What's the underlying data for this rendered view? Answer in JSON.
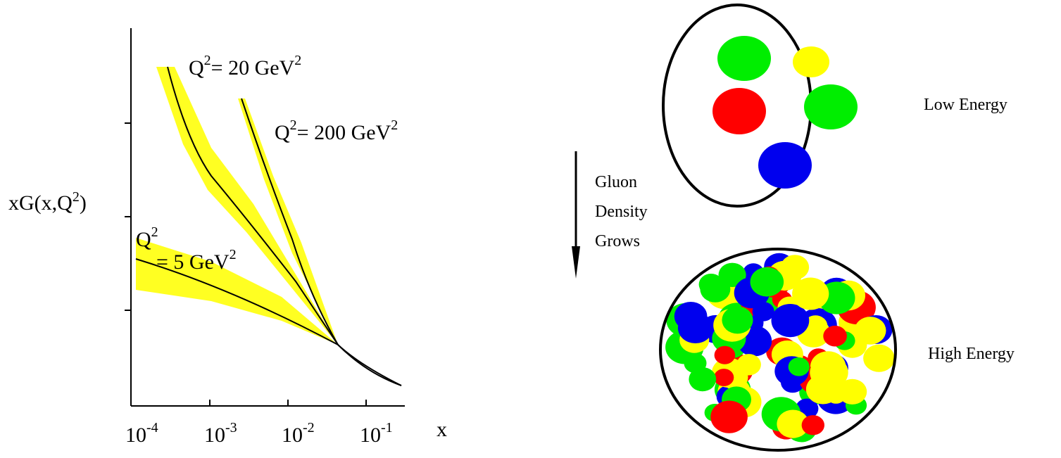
{
  "plot": {
    "y_label": {
      "text": "xG(x,Q",
      "sup": "2",
      "end": ")"
    },
    "x_label": "x",
    "x_ticks": [
      {
        "base": "10",
        "exp": "-4"
      },
      {
        "base": "10",
        "exp": "-3"
      },
      {
        "base": "10",
        "exp": "-2"
      },
      {
        "base": "10",
        "exp": "-1"
      }
    ],
    "curves": [
      {
        "q": "Q",
        "q_exp": "2",
        "text": "= 20 GeV",
        "exp": "2"
      },
      {
        "q": "Q",
        "q_exp": "2",
        "text": "= 200 GeV",
        "exp": "2"
      },
      {
        "q": "Q",
        "q_exp": "2",
        "text": "= 5 GeV",
        "exp": "2"
      }
    ]
  },
  "diagram": {
    "arrow_label": [
      "Gluon",
      "Density",
      "Grows"
    ],
    "low": "Low Energy",
    "high": "High Energy"
  }
}
